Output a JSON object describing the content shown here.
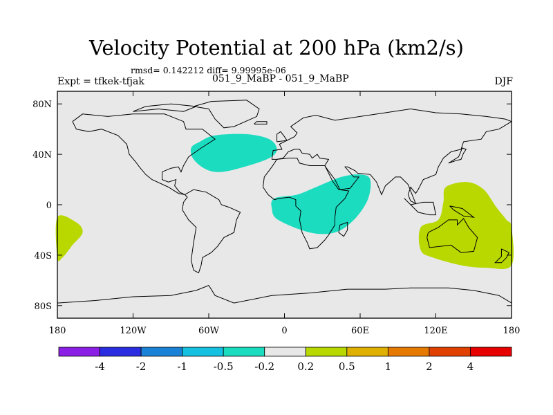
{
  "header": {
    "title": "Velocity Potential at 200 hPa (km2/s)",
    "stats": "rmsd= 0.142212 diff= 9.99995e-06",
    "experiment": "Expt = tfkek-tfjak",
    "cases": "051_9_MaBP - 051_9_MaBP",
    "season": "DJF"
  },
  "chart_data": {
    "type": "heatmap",
    "title": "Velocity Potential at 200 hPa (km2/s)",
    "x_ticks": [
      {
        "lon": -180,
        "label": "180"
      },
      {
        "lon": -120,
        "label": "120W"
      },
      {
        "lon": -60,
        "label": "60W"
      },
      {
        "lon": 0,
        "label": "0"
      },
      {
        "lon": 60,
        "label": "60E"
      },
      {
        "lon": 120,
        "label": "120E"
      },
      {
        "lon": 180,
        "label": "180"
      }
    ],
    "y_ticks": [
      {
        "lat": 80,
        "label": "80N"
      },
      {
        "lat": 40,
        "label": "40N"
      },
      {
        "lat": 0,
        "label": "0"
      },
      {
        "lat": -40,
        "label": "40S"
      },
      {
        "lat": -80,
        "label": "80S"
      }
    ],
    "xlim": [
      -180,
      180
    ],
    "ylim": [
      -90,
      90
    ],
    "colorbar": {
      "labels": [
        "-4",
        "-2",
        "-1",
        "-0.5",
        "-0.2",
        "0.2",
        "0.5",
        "1",
        "2",
        "4"
      ],
      "colors": [
        "#8c1fe6",
        "#2a2ee0",
        "#1a82d6",
        "#16c0e0",
        "#1cdcc0",
        "#e8e8e8",
        "#b8d800",
        "#e0b000",
        "#e67a00",
        "#e04000",
        "#e60000"
      ]
    },
    "regions": [
      {
        "name": "negative anomaly",
        "value_range": "-0.5 to -0.2",
        "color": "#1cdcc0",
        "outline": [
          [
            -67,
            50
          ],
          [
            -55,
            55
          ],
          [
            -30,
            56
          ],
          [
            -12,
            52
          ],
          [
            -6,
            44
          ],
          [
            -12,
            37
          ],
          [
            -32,
            30
          ],
          [
            -50,
            26
          ],
          [
            -62,
            28
          ],
          [
            -72,
            36
          ],
          [
            -74,
            45
          ]
        ]
      },
      {
        "name": "negative anomaly",
        "value_range": "-0.5 to -0.2",
        "color": "#1cdcc0",
        "outline": [
          [
            -8,
            5
          ],
          [
            10,
            8
          ],
          [
            25,
            14
          ],
          [
            45,
            22
          ],
          [
            60,
            24
          ],
          [
            68,
            20
          ],
          [
            66,
            4
          ],
          [
            55,
            -12
          ],
          [
            40,
            -22
          ],
          [
            20,
            -22
          ],
          [
            -5,
            -12
          ],
          [
            -10,
            -3
          ]
        ]
      },
      {
        "name": "positive anomaly",
        "value_range": "0.2 to 0.5",
        "color": "#b8d800",
        "outline": [
          [
            -180,
            -10
          ],
          [
            -165,
            -14
          ],
          [
            -160,
            -22
          ],
          [
            -168,
            -32
          ],
          [
            -176,
            -42
          ],
          [
            -180,
            -42
          ]
        ]
      },
      {
        "name": "positive anomaly",
        "value_range": "0.2 to 0.5",
        "color": "#b8d800",
        "outline": [
          [
            128,
            14
          ],
          [
            145,
            18
          ],
          [
            158,
            12
          ],
          [
            168,
            -2
          ],
          [
            176,
            -12
          ],
          [
            180,
            -18
          ],
          [
            180,
            -48
          ],
          [
            160,
            -50
          ],
          [
            140,
            -48
          ],
          [
            118,
            -42
          ],
          [
            108,
            -36
          ],
          [
            108,
            -18
          ],
          [
            122,
            -12
          ],
          [
            126,
            2
          ]
        ]
      }
    ]
  }
}
